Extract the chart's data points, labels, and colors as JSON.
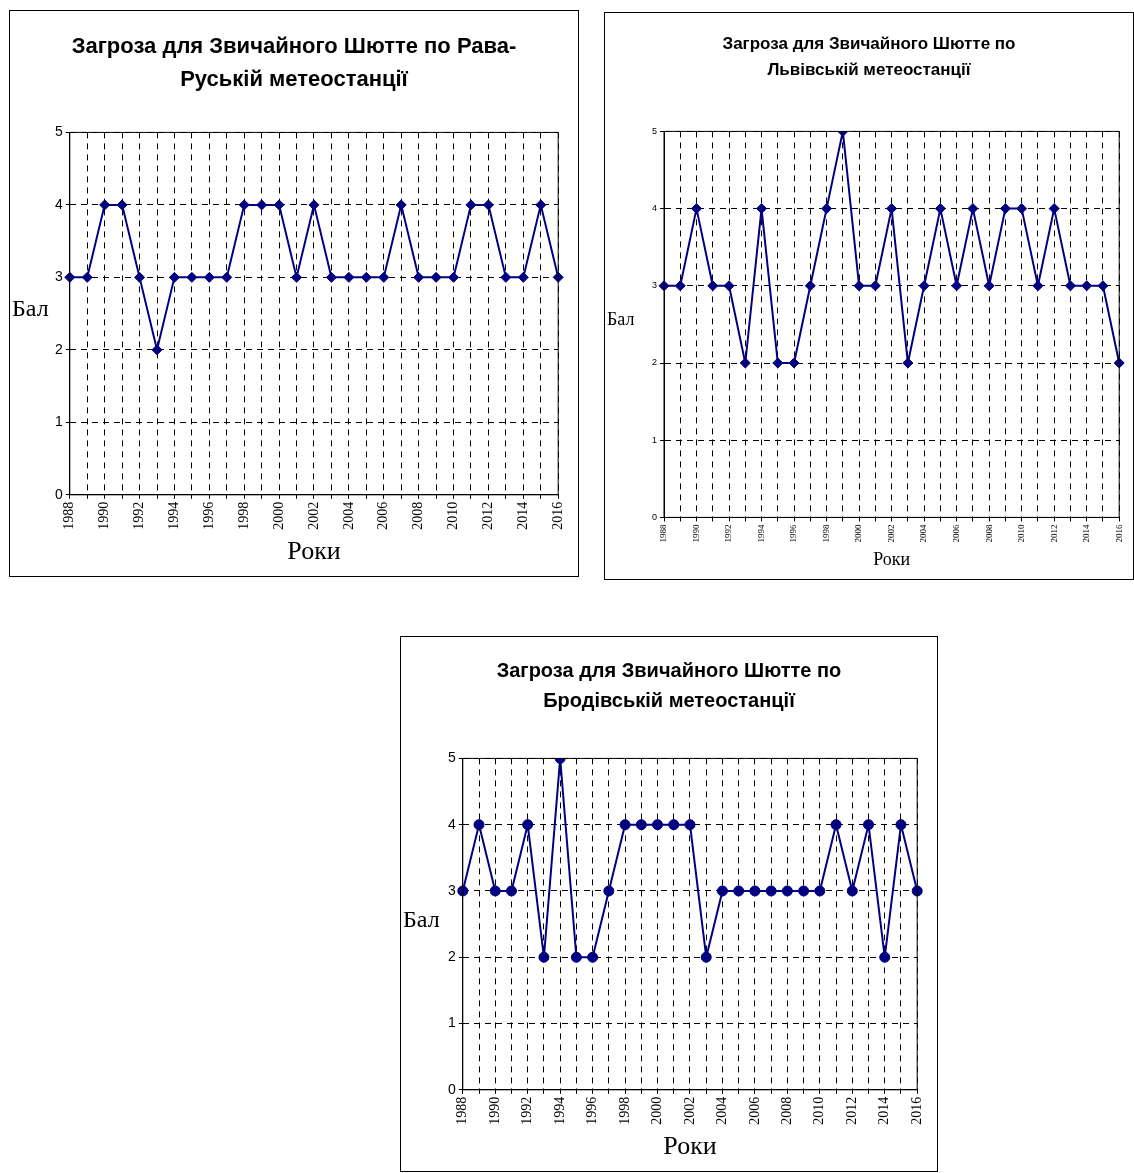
{
  "chart_data": [
    {
      "type": "line",
      "title": "Загроза для Звичайного Шютте по Рава-Руській метеостанції",
      "xlabel": "Роки",
      "ylabel": "Бал",
      "categories": [
        "1988",
        null,
        "1990",
        null,
        "1992",
        null,
        "1994",
        null,
        "1996",
        null,
        "1998",
        null,
        "2000",
        null,
        "2002",
        null,
        "2004",
        null,
        "2006",
        null,
        "2008",
        null,
        "2010",
        null,
        "2012",
        null,
        "2014",
        null,
        "2016"
      ],
      "series": [
        {
          "color": "#000080",
          "values": [
            3,
            3,
            4,
            4,
            3,
            2,
            3,
            3,
            3,
            3,
            4,
            4,
            4,
            3,
            4,
            3,
            3,
            3,
            3,
            4,
            3,
            3,
            3,
            4,
            4,
            3,
            3,
            4,
            3
          ]
        }
      ],
      "ylim": [
        0,
        5
      ],
      "yticks": [
        0,
        1,
        2,
        3,
        4,
        5
      ],
      "grid": true,
      "legend": false,
      "marker": "diamond",
      "line_style": "solid"
    },
    {
      "type": "line",
      "title": "Загроза для Звичайного Шютте по Львівській метеостанції",
      "xlabel": "Роки",
      "ylabel": "Бал",
      "categories": [
        "1988",
        null,
        "1990",
        null,
        "1992",
        null,
        "1994",
        null,
        "1996",
        null,
        "1998",
        null,
        "2000",
        null,
        "2002",
        null,
        "2004",
        null,
        "2006",
        null,
        "2008",
        null,
        "2010",
        null,
        "2012",
        null,
        "2014",
        null,
        "2016"
      ],
      "series": [
        {
          "color": "#000080",
          "values": [
            3,
            3,
            4,
            3,
            3,
            2,
            4,
            2,
            2,
            3,
            4,
            5,
            3,
            3,
            4,
            2,
            3,
            4,
            3,
            4,
            3,
            4,
            4,
            3,
            4,
            3,
            3,
            3,
            2
          ]
        }
      ],
      "ylim": [
        0,
        5
      ],
      "yticks": [
        0,
        1,
        2,
        3,
        4,
        5
      ],
      "grid": true,
      "legend": false,
      "marker": "diamond",
      "line_style": "solid"
    },
    {
      "type": "line",
      "title": "Загроза для Звичайного Шютте по Бродівській метеостанції",
      "xlabel": "Роки",
      "ylabel": "Бал",
      "categories": [
        "1988",
        null,
        "1990",
        null,
        "1992",
        null,
        "1994",
        null,
        "1996",
        null,
        "1998",
        null,
        "2000",
        null,
        "2002",
        null,
        "2004",
        null,
        "2006",
        null,
        "2008",
        null,
        "2010",
        null,
        "2012",
        null,
        "2014",
        null,
        "2016"
      ],
      "series": [
        {
          "color": "#000080",
          "values": [
            3,
            4,
            3,
            3,
            4,
            2,
            5,
            2,
            2,
            3,
            4,
            4,
            4,
            4,
            4,
            2,
            3,
            3,
            3,
            3,
            3,
            3,
            3,
            4,
            3,
            4,
            2,
            4,
            3
          ]
        }
      ],
      "ylim": [
        0,
        5
      ],
      "yticks": [
        0,
        1,
        2,
        3,
        4,
        5
      ],
      "grid": true,
      "legend": false,
      "marker": "circle",
      "line_style": "solid"
    }
  ]
}
